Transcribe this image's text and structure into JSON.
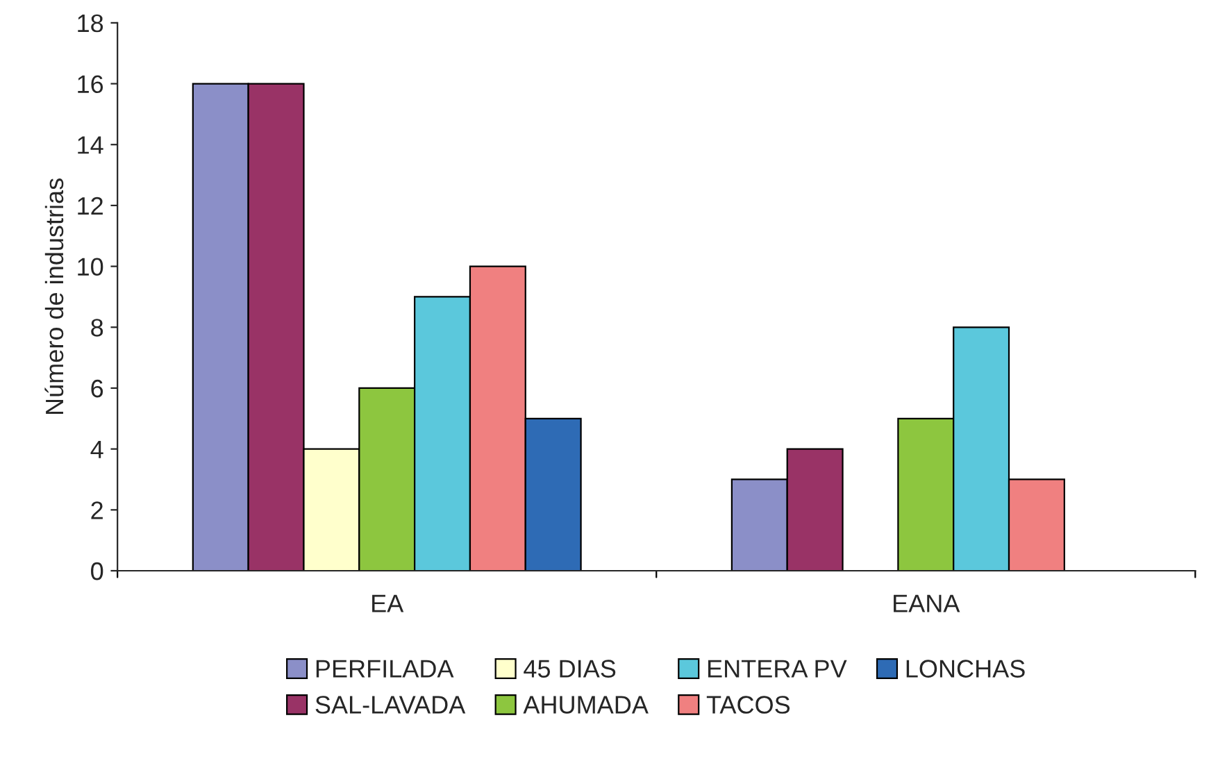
{
  "chart_data": {
    "type": "bar",
    "ylabel": "Número de industrias",
    "categories": [
      "EA",
      "EANA"
    ],
    "series": [
      {
        "name": "PERFILADA",
        "color": "#8b8fc8",
        "values": [
          16,
          3
        ]
      },
      {
        "name": "SAL-LAVADA",
        "color": "#993366",
        "values": [
          16,
          4
        ]
      },
      {
        "name": "45 DIAS",
        "color": "#ffffcc",
        "values": [
          4,
          null
        ]
      },
      {
        "name": "AHUMADA",
        "color": "#8dc63f",
        "values": [
          6,
          5
        ]
      },
      {
        "name": "ENTERA PV",
        "color": "#5bc8dc",
        "values": [
          9,
          8
        ]
      },
      {
        "name": "TACOS",
        "color": "#f08080",
        "values": [
          10,
          3
        ]
      },
      {
        "name": "LONCHAS",
        "color": "#2e6bb5",
        "values": [
          5,
          null
        ]
      }
    ],
    "ylim": [
      0,
      18
    ],
    "yticks": [
      0,
      2,
      4,
      6,
      8,
      10,
      12,
      14,
      16,
      18
    ],
    "grid": false,
    "legend": "bottom"
  }
}
